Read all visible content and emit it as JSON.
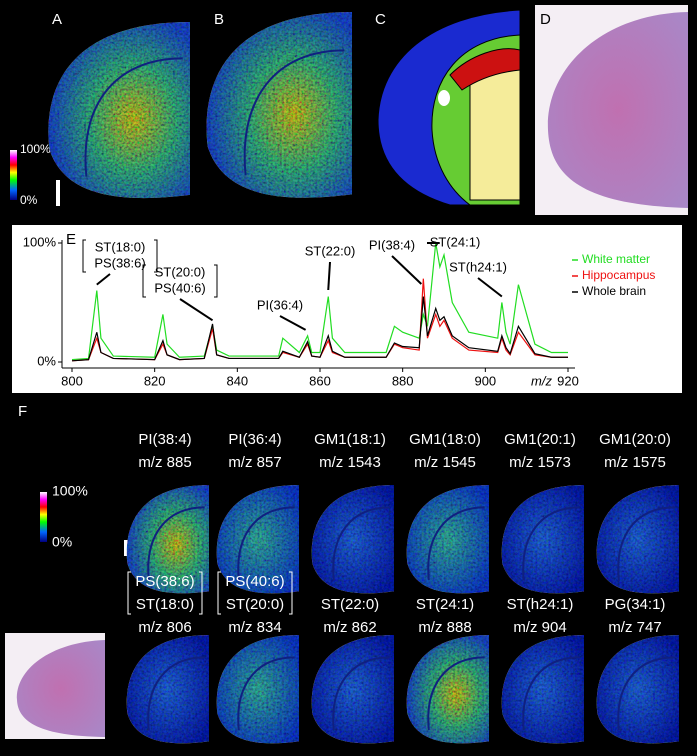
{
  "panels": {
    "a": "A",
    "b": "B",
    "c": "C",
    "d": "D",
    "e": "E",
    "f": "F"
  },
  "colorbar": {
    "max": "100%",
    "min": "0%"
  },
  "chart_data": {
    "type": "line",
    "xlabel": "m/z",
    "x": [
      800,
      804,
      806,
      807,
      810,
      820,
      822,
      823,
      826,
      832,
      834,
      835,
      838,
      850,
      851,
      855,
      857,
      858,
      860,
      862,
      863,
      866,
      876,
      878,
      880,
      884,
      885,
      886,
      888,
      889,
      890,
      892,
      896,
      903,
      904,
      905,
      906,
      908,
      912,
      916,
      920
    ],
    "series": [
      {
        "name": "White matter",
        "color": "#22dd22",
        "values": [
          2,
          3,
          60,
          20,
          5,
          4,
          40,
          15,
          4,
          5,
          30,
          10,
          5,
          5,
          20,
          8,
          22,
          8,
          8,
          55,
          20,
          8,
          8,
          30,
          25,
          20,
          40,
          30,
          100,
          80,
          90,
          50,
          25,
          20,
          50,
          25,
          15,
          65,
          15,
          8,
          8
        ]
      },
      {
        "name": "Hippocampus",
        "color": "#ee1111",
        "values": [
          1,
          2,
          20,
          8,
          3,
          2,
          15,
          6,
          2,
          3,
          28,
          6,
          3,
          3,
          8,
          4,
          15,
          5,
          4,
          18,
          8,
          4,
          4,
          15,
          12,
          10,
          70,
          20,
          40,
          30,
          35,
          20,
          10,
          8,
          20,
          10,
          6,
          25,
          6,
          4,
          4
        ]
      },
      {
        "name": "Whole brain",
        "color": "#000000",
        "values": [
          1,
          2,
          25,
          8,
          3,
          2,
          18,
          6,
          2,
          3,
          32,
          6,
          3,
          3,
          9,
          4,
          17,
          5,
          4,
          22,
          9,
          4,
          4,
          16,
          13,
          12,
          55,
          22,
          45,
          35,
          38,
          22,
          12,
          9,
          22,
          12,
          7,
          30,
          7,
          4,
          4
        ]
      }
    ],
    "xlim": [
      800,
      920
    ],
    "ylim": [
      0,
      100
    ],
    "xticks": [
      800,
      820,
      840,
      860,
      880,
      900,
      920
    ],
    "yticks": [
      {
        "value": 0,
        "label": "0%"
      },
      {
        "value": 100,
        "label": "100%"
      }
    ],
    "annotations": [
      {
        "text": [
          "ST(18:0)",
          "PS(38:6)"
        ],
        "x": 806
      },
      {
        "text": [
          "ST(20:0)",
          "PS(40:6)"
        ],
        "x": 834
      },
      {
        "text": [
          "PI(36:4)"
        ],
        "x": 857
      },
      {
        "text": [
          "ST(22:0)"
        ],
        "x": 862
      },
      {
        "text": [
          "PI(38:4)"
        ],
        "x": 885
      },
      {
        "text": [
          "ST(24:1)"
        ],
        "x": 888
      },
      {
        "text": [
          "ST(h24:1)"
        ],
        "x": 904
      }
    ]
  },
  "ion_images": {
    "colorbar": {
      "max": "100%",
      "min": "0%"
    },
    "row1": [
      {
        "name": [
          "PI(38:4)"
        ],
        "mz": "m/z 885"
      },
      {
        "name": [
          "PI(36:4)"
        ],
        "mz": "m/z 857"
      },
      {
        "name": [
          "GM1(18:1)"
        ],
        "mz": "m/z 1543"
      },
      {
        "name": [
          "GM1(18:0)"
        ],
        "mz": "m/z 1545"
      },
      {
        "name": [
          "GM1(20:1)"
        ],
        "mz": "m/z 1573"
      },
      {
        "name": [
          "GM1(20:0)"
        ],
        "mz": "m/z 1575"
      }
    ],
    "row2": [
      {
        "name": [
          "PS(38:6)",
          "ST(18:0)"
        ],
        "mz": "m/z 806"
      },
      {
        "name": [
          "PS(40:6)",
          "ST(20:0)"
        ],
        "mz": "m/z 834"
      },
      {
        "name": [
          "ST(22:0)"
        ],
        "mz": "m/z 862"
      },
      {
        "name": [
          "ST(24:1)"
        ],
        "mz": "m/z 888"
      },
      {
        "name": [
          "ST(h24:1)"
        ],
        "mz": "m/z 904"
      },
      {
        "name": [
          "PG(34:1)"
        ],
        "mz": "m/z 747"
      }
    ]
  }
}
